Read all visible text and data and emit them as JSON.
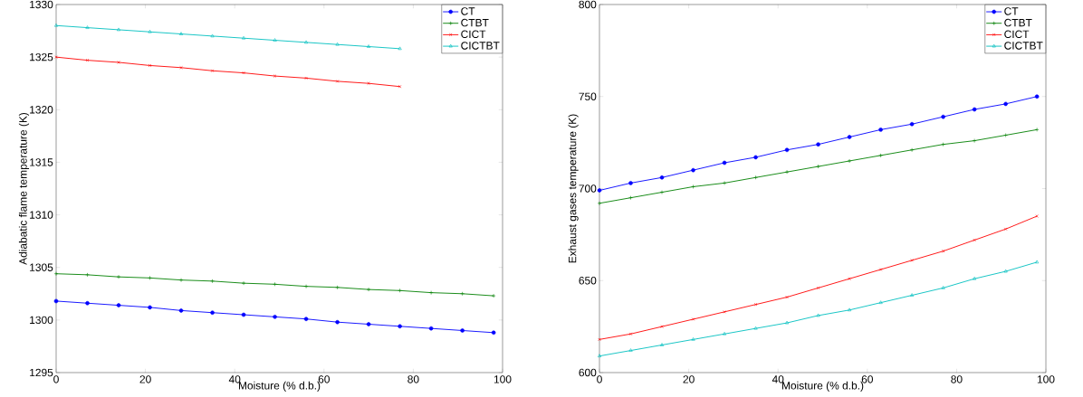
{
  "chart_data": [
    {
      "type": "line",
      "xlabel": "Moisture (% d.b.)",
      "ylabel": "Adiabatic flame temperature (K)",
      "x": [
        0,
        7,
        14,
        21,
        28,
        35,
        42,
        49,
        56,
        63,
        70,
        77,
        84,
        91,
        98
      ],
      "xlim": [
        0,
        100
      ],
      "ylim": [
        1295,
        1330
      ],
      "xticks": [
        0,
        20,
        40,
        60,
        80,
        100
      ],
      "yticks": [
        1295,
        1300,
        1305,
        1310,
        1315,
        1320,
        1325,
        1330
      ],
      "legend": "top right",
      "grid": false,
      "series": [
        {
          "name": "CT",
          "color": "#0000ff",
          "marker": "circle",
          "values": [
            1301.8,
            1301.6,
            1301.4,
            1301.2,
            1300.9,
            1300.7,
            1300.5,
            1300.3,
            1300.1,
            1299.8,
            1299.6,
            1299.4,
            1299.2,
            1299.0,
            1298.8
          ]
        },
        {
          "name": "CTBT",
          "color": "#008000",
          "marker": "plus",
          "values": [
            1304.4,
            1304.3,
            1304.1,
            1304.0,
            1303.8,
            1303.7,
            1303.5,
            1303.4,
            1303.2,
            1303.1,
            1302.9,
            1302.8,
            1302.6,
            1302.5,
            1302.3
          ]
        },
        {
          "name": "CICT",
          "color": "#ff0000",
          "marker": "cross",
          "values": [
            1325.0,
            1324.7,
            1324.5,
            1324.2,
            1324.0,
            1323.7,
            1323.5,
            1323.2,
            1323.0,
            1322.7,
            1322.5,
            1322.2,
            null,
            null,
            null
          ]
        },
        {
          "name": "CICTBT",
          "color": "#00bfbf",
          "marker": "triangle",
          "values": [
            1328.0,
            1327.8,
            1327.6,
            1327.4,
            1327.2,
            1327.0,
            1326.8,
            1326.6,
            1326.4,
            1326.2,
            1326.0,
            1325.8,
            null,
            null,
            null
          ]
        }
      ]
    },
    {
      "type": "line",
      "xlabel": "Moisture (% d.b.)",
      "ylabel": "Exhaust gases temperature (K)",
      "x": [
        0,
        7,
        14,
        21,
        28,
        35,
        42,
        49,
        56,
        63,
        70,
        77,
        84,
        91,
        98
      ],
      "xlim": [
        0,
        100
      ],
      "ylim": [
        600,
        800
      ],
      "xticks": [
        0,
        20,
        40,
        60,
        80,
        100
      ],
      "yticks": [
        600,
        650,
        700,
        750,
        800
      ],
      "legend": "top right",
      "grid": false,
      "series": [
        {
          "name": "CT",
          "color": "#0000ff",
          "marker": "circle",
          "values": [
            699,
            703,
            706,
            710,
            714,
            717,
            721,
            724,
            728,
            732,
            735,
            739,
            743,
            746,
            750
          ]
        },
        {
          "name": "CTBT",
          "color": "#008000",
          "marker": "plus",
          "values": [
            692,
            695,
            698,
            701,
            703,
            706,
            709,
            712,
            715,
            718,
            721,
            724,
            726,
            729,
            732
          ]
        },
        {
          "name": "CICT",
          "color": "#ff0000",
          "marker": "cross",
          "values": [
            618,
            621,
            625,
            629,
            633,
            637,
            641,
            646,
            651,
            656,
            661,
            666,
            672,
            678,
            685
          ]
        },
        {
          "name": "CICTBT",
          "color": "#00bfbf",
          "marker": "triangle",
          "values": [
            609,
            612,
            615,
            618,
            621,
            624,
            627,
            631,
            634,
            638,
            642,
            646,
            651,
            655,
            660
          ]
        }
      ]
    }
  ]
}
